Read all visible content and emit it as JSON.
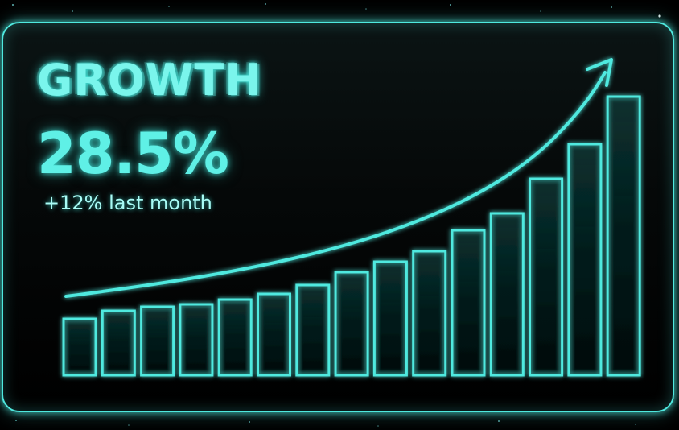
{
  "title": "GROWTH",
  "value": "28.5%",
  "change": "+12% last month",
  "colors": {
    "accent": "#4fe9df",
    "glow": "#3fe3d8",
    "background": "#000000"
  },
  "chart_data": {
    "type": "bar",
    "title": "GROWTH",
    "values": [
      70,
      80,
      85,
      88,
      94,
      101,
      112,
      128,
      141,
      154,
      180,
      201,
      244,
      287,
      346
    ],
    "trend": "exponential-arrow",
    "grid": false,
    "legend": "none"
  }
}
